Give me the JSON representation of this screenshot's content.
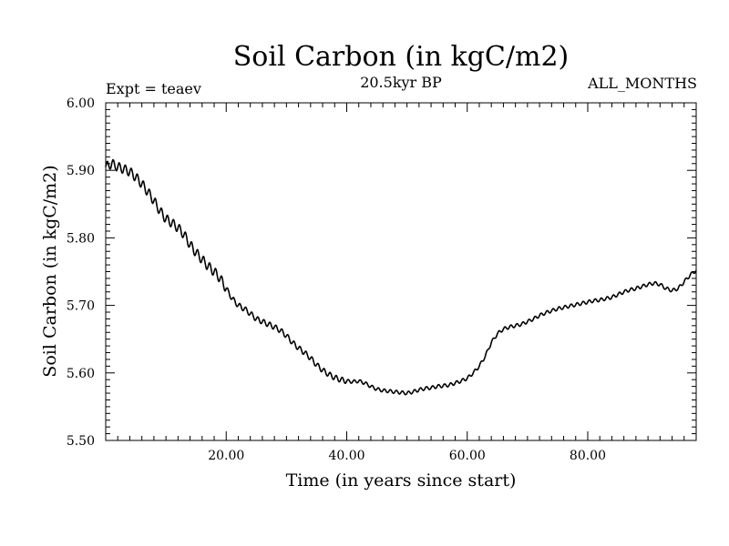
{
  "chart_data": {
    "type": "line",
    "title": "Soil Carbon (in kgC/m2)",
    "subtitle": "20.5kyr BP",
    "experiment_label": "Expt = teaev",
    "months_label": "ALL_MONTHS",
    "xlabel": "Time (in years since start)",
    "ylabel": "Soil Carbon (in kgC/m2)",
    "xlim": [
      0,
      98
    ],
    "ylim": [
      5.5,
      6.0
    ],
    "xticks": [
      20,
      40,
      60,
      80
    ],
    "xtick_labels": [
      "20.00",
      "40.00",
      "60.00",
      "80.00"
    ],
    "yticks": [
      5.5,
      5.6,
      5.7,
      5.8,
      5.9,
      6.0
    ],
    "ytick_labels": [
      "5.50",
      "5.60",
      "5.70",
      "5.80",
      "5.90",
      "6.00"
    ],
    "grid": false,
    "series": [
      {
        "name": "Soil Carbon",
        "x": [
          0,
          1,
          2,
          3,
          4,
          5,
          6,
          7,
          8,
          9,
          10,
          11,
          12,
          13,
          14,
          15,
          16,
          17,
          18,
          19,
          20,
          21,
          22,
          23,
          24,
          25,
          26,
          27,
          28,
          29,
          30,
          31,
          32,
          33,
          34,
          35,
          36,
          37,
          38,
          39,
          40,
          41,
          42,
          43,
          44,
          45,
          46,
          47,
          48,
          49,
          50,
          51,
          52,
          53,
          54,
          55,
          56,
          57,
          58,
          59,
          60,
          61,
          62,
          63,
          64,
          65,
          66,
          67,
          68,
          69,
          70,
          71,
          72,
          73,
          74,
          75,
          76,
          77,
          78,
          79,
          80,
          81,
          82,
          83,
          84,
          85,
          86,
          87,
          88,
          89,
          90,
          91,
          92,
          93,
          94,
          95,
          96,
          97,
          98
        ],
        "values": [
          5.905,
          5.91,
          5.905,
          5.902,
          5.898,
          5.89,
          5.88,
          5.868,
          5.855,
          5.84,
          5.828,
          5.822,
          5.815,
          5.805,
          5.79,
          5.778,
          5.768,
          5.758,
          5.75,
          5.74,
          5.725,
          5.71,
          5.7,
          5.695,
          5.688,
          5.68,
          5.676,
          5.672,
          5.668,
          5.663,
          5.655,
          5.645,
          5.637,
          5.63,
          5.622,
          5.612,
          5.604,
          5.598,
          5.593,
          5.59,
          5.588,
          5.587,
          5.588,
          5.585,
          5.58,
          5.576,
          5.574,
          5.573,
          5.572,
          5.571,
          5.57,
          5.572,
          5.575,
          5.577,
          5.578,
          5.58,
          5.581,
          5.582,
          5.585,
          5.588,
          5.592,
          5.6,
          5.61,
          5.625,
          5.645,
          5.658,
          5.665,
          5.668,
          5.67,
          5.672,
          5.676,
          5.68,
          5.685,
          5.689,
          5.692,
          5.695,
          5.697,
          5.699,
          5.701,
          5.703,
          5.705,
          5.707,
          5.708,
          5.71,
          5.712,
          5.716,
          5.72,
          5.723,
          5.725,
          5.728,
          5.731,
          5.733,
          5.731,
          5.725,
          5.722,
          5.725,
          5.735,
          5.745,
          5.752
        ]
      }
    ]
  }
}
